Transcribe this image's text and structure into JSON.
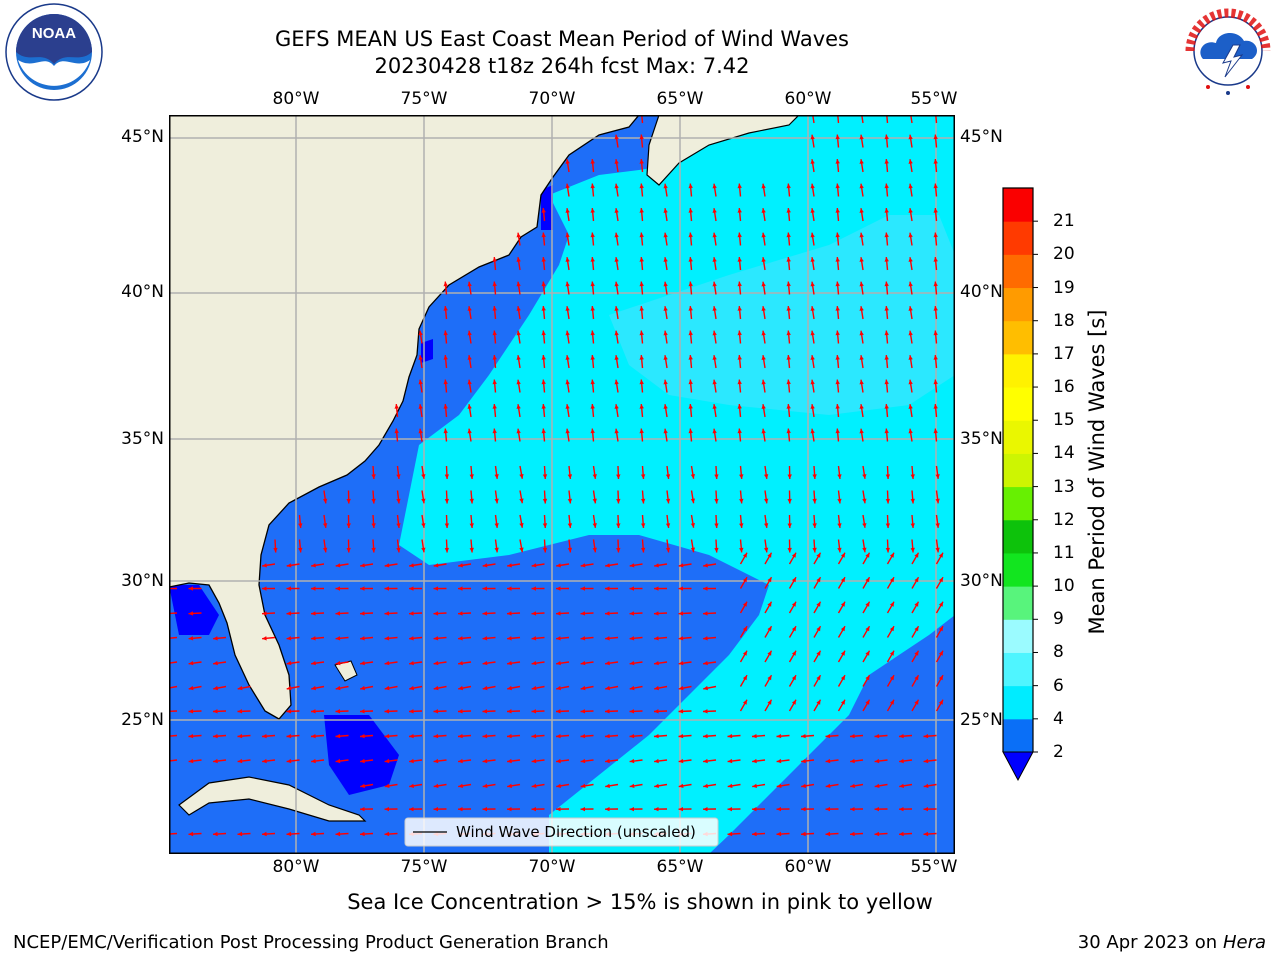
{
  "title": {
    "line1": "GEFS MEAN US East Coast Mean Period of Wind Waves",
    "line2": "20230428 t18z 264h fcst   Max: 7.42"
  },
  "logos": {
    "noaa_text": "NOAA",
    "noaa_ring": "NATIONAL OCEANIC AND ATMOSPHERIC ADMINISTRATION · U.S. DEPARTMENT OF COMMERCE",
    "nws_ring": "NATIONAL WEATHER SERVICE"
  },
  "map": {
    "lon_labels": [
      "80°W",
      "75°W",
      "70°W",
      "65°W",
      "60°W",
      "55°W"
    ],
    "lat_labels": [
      "45°N",
      "40°N",
      "35°N",
      "30°N",
      "25°N"
    ],
    "legend_text": "Wind Wave Direction (unscaled)",
    "colors": {
      "land": "#efeedc",
      "sea_2_4": "#1e6ef8",
      "sea_4_6": "#00f0ff",
      "sea_6_8": "#2be8ff",
      "sea_under_2": "#0000ff",
      "arrow": "#ff0000",
      "grid": "#b0b0b0"
    }
  },
  "colorbar": {
    "label": "Mean Period of Wind Waves [s]",
    "ticks": [
      "2",
      "4",
      "6",
      "8",
      "9",
      "10",
      "11",
      "12",
      "13",
      "14",
      "15",
      "16",
      "17",
      "18",
      "19",
      "20",
      "21"
    ],
    "colors": [
      "#0a6ff7",
      "#00ecff",
      "#4ff5ff",
      "#9bfbff",
      "#58f47c",
      "#12e51f",
      "#0dc20b",
      "#67f002",
      "#cdf502",
      "#eaf700",
      "#ffff00",
      "#fff200",
      "#ffbe00",
      "#ff9b00",
      "#ff6b00",
      "#ff3a00",
      "#fa0000"
    ],
    "extend_color": "#0000ff"
  },
  "footer": {
    "note": "Sea Ice Concentration > 15% is shown in pink to yellow",
    "left": "NCEP/EMC/Verification Post Processing Product Generation Branch",
    "date": "30 Apr 2023 on ",
    "machine": "Hera"
  }
}
